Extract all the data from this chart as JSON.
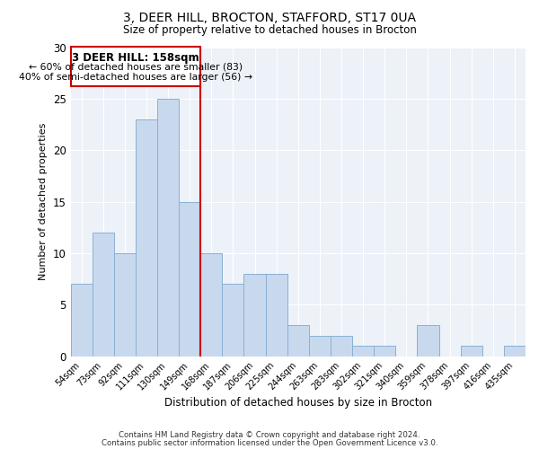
{
  "title1": "3, DEER HILL, BROCTON, STAFFORD, ST17 0UA",
  "title2": "Size of property relative to detached houses in Brocton",
  "xlabel": "Distribution of detached houses by size in Brocton",
  "ylabel": "Number of detached properties",
  "categories": [
    "54sqm",
    "73sqm",
    "92sqm",
    "111sqm",
    "130sqm",
    "149sqm",
    "168sqm",
    "187sqm",
    "206sqm",
    "225sqm",
    "244sqm",
    "263sqm",
    "283sqm",
    "302sqm",
    "321sqm",
    "340sqm",
    "359sqm",
    "378sqm",
    "397sqm",
    "416sqm",
    "435sqm"
  ],
  "values": [
    7,
    12,
    10,
    23,
    25,
    15,
    10,
    7,
    8,
    8,
    3,
    2,
    2,
    1,
    1,
    0,
    3,
    0,
    1,
    0,
    1
  ],
  "bar_color": "#c8d9ee",
  "bar_edge_color": "#8ab0d4",
  "redline_x": 5.5,
  "ylim": [
    0,
    30
  ],
  "annotation_title": "3 DEER HILL: 158sqm",
  "annotation_line1": "← 60% of detached houses are smaller (83)",
  "annotation_line2": "40% of semi-detached houses are larger (56) →",
  "annotation_box_edge": "#cc0000",
  "footer1": "Contains HM Land Registry data © Crown copyright and database right 2024.",
  "footer2": "Contains public sector information licensed under the Open Government Licence v3.0.",
  "bg_color": "#edf2f9",
  "grid_color": "#ffffff"
}
